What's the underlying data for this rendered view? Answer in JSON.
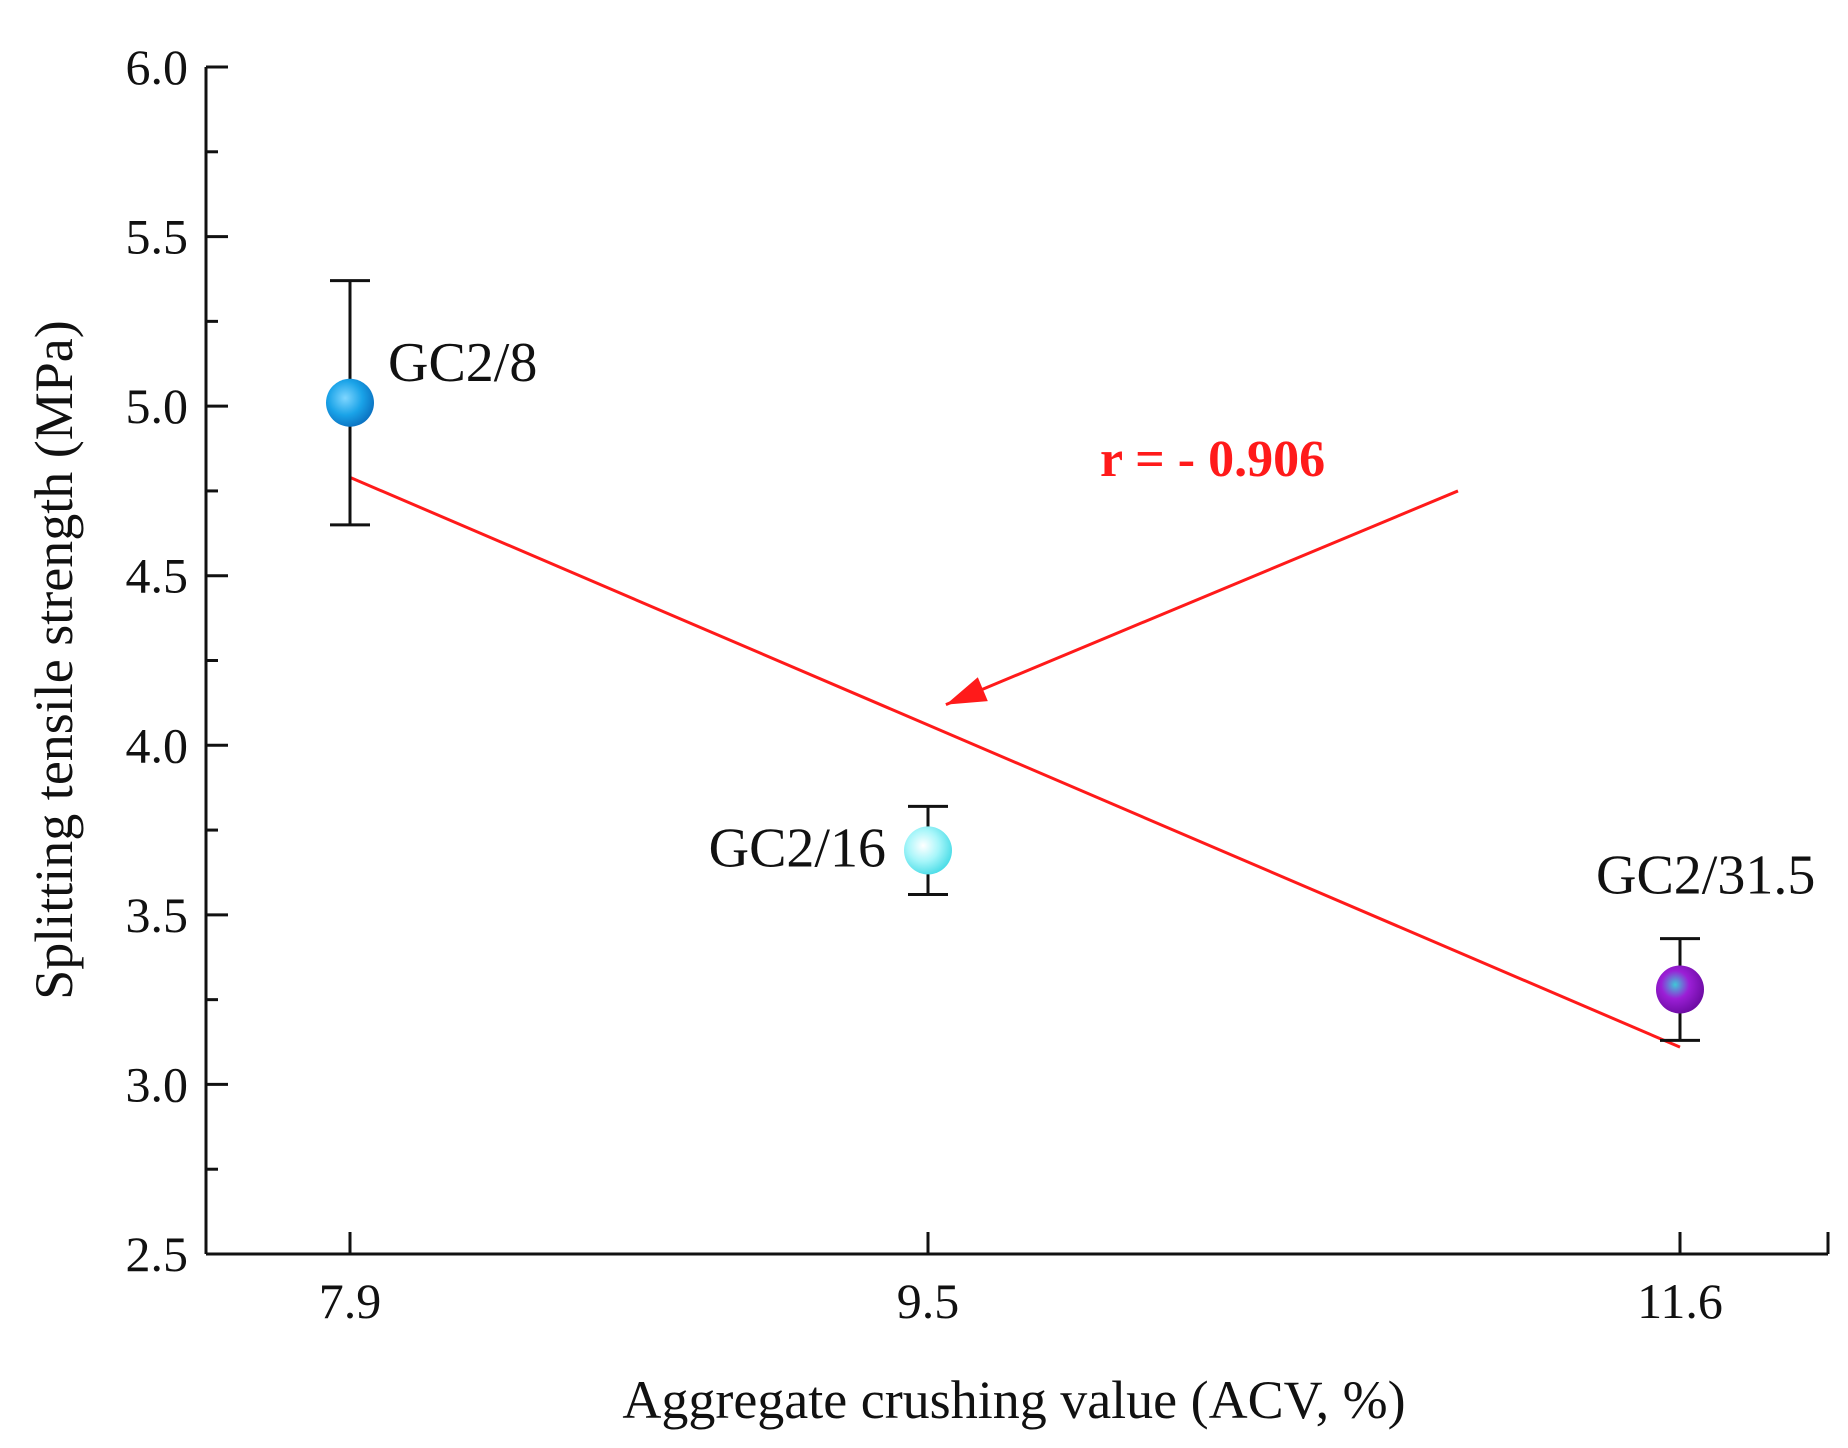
{
  "chart_data": {
    "type": "scatter",
    "xlabel": "Aggregate crushing value (ACV, %)",
    "ylabel": "Splitting tensile strength (MPa)",
    "x_tick_labels": [
      "7.9",
      "9.5",
      "11.6"
    ],
    "y_tick_labels": [
      "2.5",
      "3.0",
      "3.5",
      "4.0",
      "4.5",
      "5.0",
      "5.5",
      "6.0"
    ],
    "ylim": [
      2.5,
      6.0
    ],
    "xlim": [
      7.5,
      12.0
    ],
    "series": [
      {
        "name": "points",
        "points": [
          {
            "label": "GC2/8",
            "x": 7.9,
            "y": 5.01,
            "err": 0.36,
            "color": "#1aa3e8"
          },
          {
            "label": "GC2/16",
            "x": 9.5,
            "y": 3.69,
            "err": 0.13,
            "color": "#86f2f6"
          },
          {
            "label": "GC2/31.5",
            "x": 11.6,
            "y": 3.28,
            "err": 0.15,
            "color": "#9b1fd6"
          }
        ]
      }
    ],
    "fit_line": {
      "x": [
        7.9,
        11.6
      ],
      "y": [
        4.79,
        3.11
      ],
      "color": "#ff1a1a"
    },
    "annotation": {
      "text": "r = - 0.906",
      "color": "#ff1a1a",
      "arrow_tip": {
        "x": 9.55,
        "y": 4.12
      },
      "arrow_start": {
        "x": 10.98,
        "y": 4.75
      },
      "text_anchor": {
        "x": 10.95,
        "y": 4.9
      }
    },
    "grid": false
  }
}
